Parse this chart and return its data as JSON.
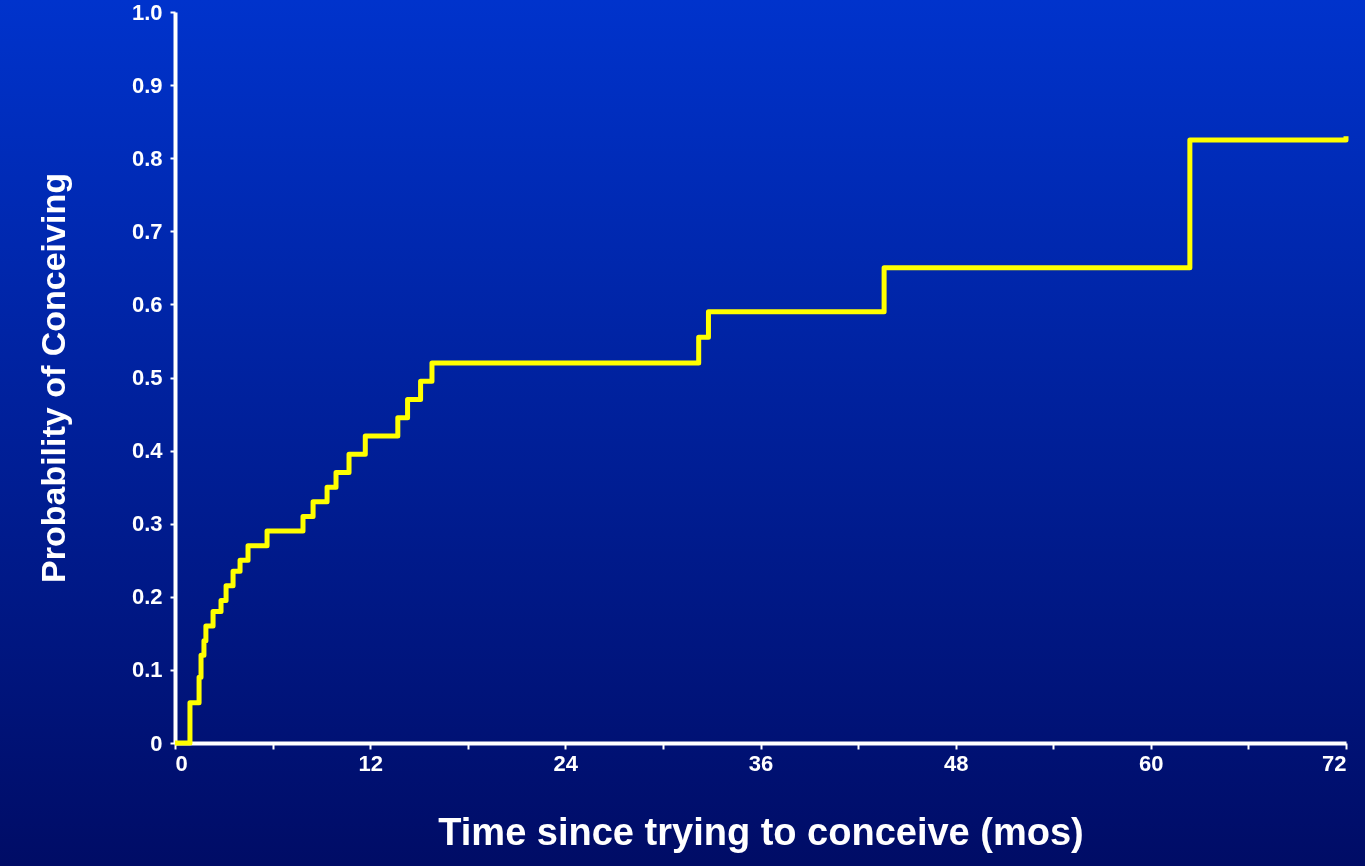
{
  "chart_data": {
    "type": "step",
    "xlabel": "Time since trying to conceive (mos)",
    "ylabel": "Probability of Conceiving",
    "x": [
      0,
      0.92,
      1.48,
      1.6,
      1.78,
      1.9,
      2.34,
      2.83,
      3.14,
      3.57,
      4.0,
      4.49,
      5.66,
      7.87,
      8.49,
      9.35,
      9.9,
      10.7,
      11.7,
      13.7,
      14.3,
      15.1,
      15.8,
      32.2,
      32.8,
      43.6,
      62.4,
      72
    ],
    "series": [
      {
        "color": "#ffff00",
        "values": [
          0,
          0.055,
          0.09,
          0.12,
          0.14,
          0.16,
          0.18,
          0.195,
          0.215,
          0.235,
          0.25,
          0.27,
          0.29,
          0.31,
          0.33,
          0.35,
          0.37,
          0.395,
          0.42,
          0.445,
          0.47,
          0.495,
          0.52,
          0.555,
          0.59,
          0.65,
          0.825,
          0.83
        ]
      }
    ],
    "xlim": [
      0,
      72
    ],
    "xticks": [
      0,
      {
        "value": 6,
        "label": null
      },
      12,
      {
        "value": 18,
        "label": null
      },
      24,
      {
        "value": 30,
        "label": null
      },
      36,
      {
        "value": 42,
        "label": null
      },
      48,
      {
        "value": 54,
        "label": null
      },
      60,
      {
        "value": 66,
        "label": null
      },
      72
    ],
    "ylim": [
      0,
      1.0
    ],
    "yticks": [
      0,
      0.1,
      0.2,
      0.3,
      0.4,
      0.5,
      0.6,
      0.7,
      0.8,
      0.9,
      {
        "value": 1.0,
        "label": "1.0"
      }
    ],
    "grid": false,
    "marker": "none",
    "line_style": "solid"
  }
}
